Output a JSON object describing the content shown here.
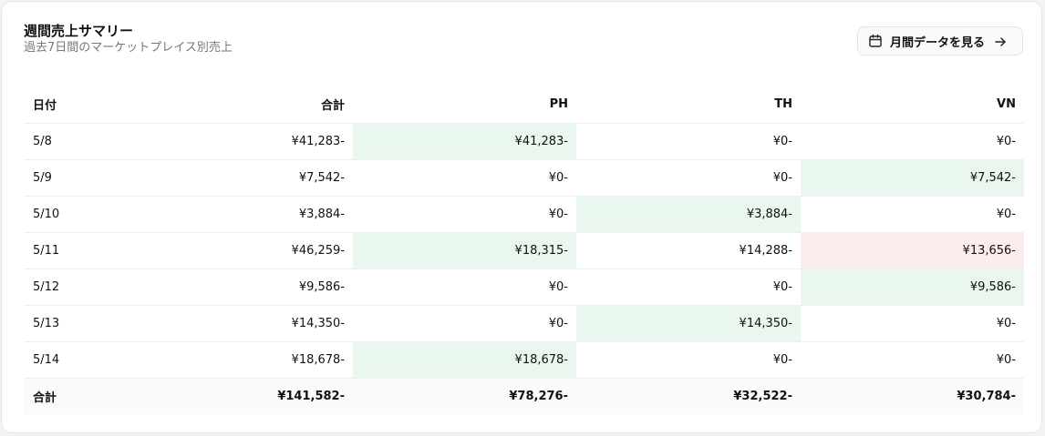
{
  "header": {
    "title": "週間売上サマリー",
    "subtitle": "過去7日間のマーケットプレイス別売上",
    "monthly_button_label": "月間データを見る",
    "monthly_button_icon": "calendar-icon",
    "monthly_button_arrow_icon": "arrow-right-icon"
  },
  "colors": {
    "highlight_green": "#e9f7ef",
    "highlight_red": "#fdecec"
  },
  "table": {
    "columns": [
      "日付",
      "合計",
      "PH",
      "TH",
      "VN"
    ],
    "rows": [
      {
        "date": "5/8",
        "total": "¥41,283-",
        "ph": "¥41,283-",
        "th": "¥0-",
        "vn": "¥0-"
      },
      {
        "date": "5/9",
        "total": "¥7,542-",
        "ph": "¥0-",
        "th": "¥0-",
        "vn": "¥7,542-"
      },
      {
        "date": "5/10",
        "total": "¥3,884-",
        "ph": "¥0-",
        "th": "¥3,884-",
        "vn": "¥0-"
      },
      {
        "date": "5/11",
        "total": "¥46,259-",
        "ph": "¥18,315-",
        "th": "¥14,288-",
        "vn": "¥13,656-"
      },
      {
        "date": "5/12",
        "total": "¥9,586-",
        "ph": "¥0-",
        "th": "¥0-",
        "vn": "¥9,586-"
      },
      {
        "date": "5/13",
        "total": "¥14,350-",
        "ph": "¥0-",
        "th": "¥14,350-",
        "vn": "¥0-"
      },
      {
        "date": "5/14",
        "total": "¥18,678-",
        "ph": "¥18,678-",
        "th": "¥0-",
        "vn": "¥0-"
      }
    ],
    "totals": {
      "label": "合計",
      "total": "¥141,582-",
      "ph": "¥78,276-",
      "th": "¥32,522-",
      "vn": "¥30,784-"
    }
  }
}
